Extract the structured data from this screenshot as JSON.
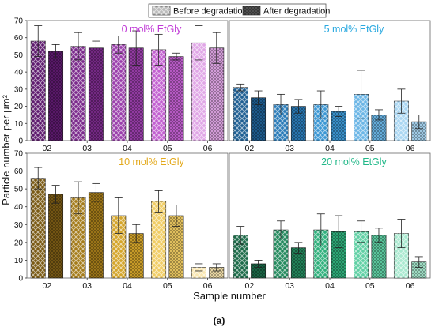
{
  "figure": {
    "ylabel": "Particle number per μm²",
    "xlabel": "Sample number",
    "caption": "(a)",
    "legend": {
      "before_label": "Before degradation",
      "after_label": "After degradation",
      "placement": "top-center"
    }
  },
  "chart_data": [
    {
      "type": "bar",
      "title": "0 mol% EtGly",
      "title_color": "#c03ad6",
      "categories": [
        "02",
        "03",
        "04",
        "05",
        "06"
      ],
      "ylim": [
        0,
        70
      ],
      "grid": false,
      "colors": [
        "#5e1a6e",
        "#7b2a8c",
        "#9a3eab",
        "#c25fd0",
        "#e0a6e6"
      ],
      "series": [
        {
          "name": "Before degradation",
          "values": [
            58,
            55,
            56,
            53,
            57
          ],
          "errors": [
            9,
            8,
            5,
            9,
            10
          ]
        },
        {
          "name": "After degradation",
          "values": [
            52,
            54,
            54,
            49,
            54
          ],
          "errors": [
            4,
            4,
            10,
            2,
            9
          ]
        }
      ]
    },
    {
      "type": "bar",
      "title": "5 mol% EtGly",
      "title_color": "#2aa9e0",
      "categories": [
        "02",
        "03",
        "04",
        "05",
        "06"
      ],
      "ylim": [
        0,
        70
      ],
      "grid": false,
      "colors": [
        "#1f5f93",
        "#2a7bb8",
        "#3b97d4",
        "#6bb6e6",
        "#a9d6f2"
      ],
      "series": [
        {
          "name": "Before degradation",
          "values": [
            31,
            21,
            21,
            27,
            23
          ],
          "errors": [
            2,
            6,
            8,
            14,
            7
          ]
        },
        {
          "name": "After degradation",
          "values": [
            25,
            20,
            17,
            15,
            11
          ],
          "errors": [
            4,
            4,
            3,
            3,
            4
          ]
        }
      ]
    },
    {
      "type": "bar",
      "title": "10 mol% EtGly",
      "title_color": "#e3a91c",
      "categories": [
        "02",
        "03",
        "04",
        "05",
        "06"
      ],
      "ylim": [
        0,
        70
      ],
      "grid": false,
      "colors": [
        "#7a5a14",
        "#a47b1a",
        "#d4a52a",
        "#f0cc63",
        "#f9e6b0"
      ],
      "series": [
        {
          "name": "Before degradation",
          "values": [
            56,
            45,
            35,
            43,
            6
          ],
          "errors": [
            6,
            9,
            10,
            6,
            2
          ]
        },
        {
          "name": "After degradation",
          "values": [
            47,
            48,
            25,
            35,
            6
          ],
          "errors": [
            5,
            5,
            5,
            6,
            2
          ]
        }
      ]
    },
    {
      "type": "bar",
      "title": "20 mol% EtGly",
      "title_color": "#22b889",
      "categories": [
        "02",
        "03",
        "04",
        "05",
        "06"
      ],
      "ylim": [
        0,
        70
      ],
      "grid": false,
      "colors": [
        "#1b6a48",
        "#24895e",
        "#2fb07c",
        "#5fd0a4",
        "#a8e9cf"
      ],
      "series": [
        {
          "name": "Before degradation",
          "values": [
            24,
            27,
            27,
            26,
            25
          ],
          "errors": [
            5,
            5,
            9,
            6,
            8
          ]
        },
        {
          "name": "After degradation",
          "values": [
            8,
            17,
            26,
            24,
            9
          ],
          "errors": [
            2,
            3,
            9,
            4,
            3
          ]
        }
      ]
    }
  ],
  "y_ticks": [
    0,
    10,
    20,
    30,
    40,
    50,
    60,
    70
  ],
  "axis_color": "#333333",
  "frame_color": "#666666"
}
